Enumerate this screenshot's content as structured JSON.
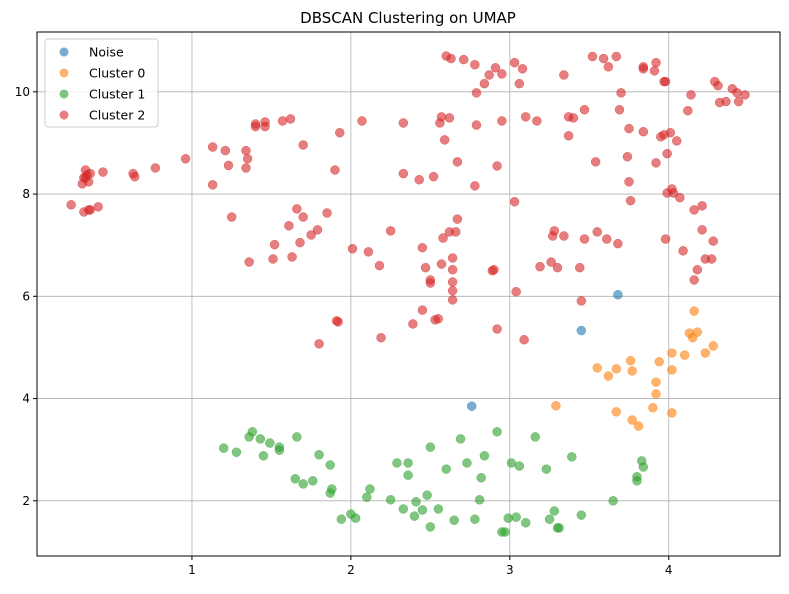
{
  "chart_data": {
    "type": "scatter",
    "title": "DBSCAN Clustering on UMAP",
    "xlabel": "",
    "ylabel": "",
    "xlim": [
      0.025,
      4.7
    ],
    "ylim": [
      0.92,
      11.17
    ],
    "xticks": [
      1,
      2,
      3,
      4
    ],
    "yticks": [
      2,
      4,
      6,
      8,
      10
    ],
    "grid": true,
    "legend_position": "top-left",
    "alpha": 0.6,
    "series": [
      {
        "name": "Noise",
        "color": "#1f77b4",
        "points": [
          [
            3.68,
            6.03
          ],
          [
            3.45,
            5.33
          ],
          [
            2.76,
            3.85
          ]
        ]
      },
      {
        "name": "Cluster 0",
        "color": "#ff7f0e",
        "points": [
          [
            4.16,
            5.71
          ],
          [
            4.13,
            5.28
          ],
          [
            4.18,
            5.3
          ],
          [
            4.15,
            5.19
          ],
          [
            4.28,
            5.03
          ],
          [
            4.02,
            4.89
          ],
          [
            4.1,
            4.85
          ],
          [
            4.23,
            4.89
          ],
          [
            3.76,
            4.74
          ],
          [
            3.94,
            4.72
          ],
          [
            3.55,
            4.6
          ],
          [
            3.67,
            4.58
          ],
          [
            3.77,
            4.54
          ],
          [
            4.02,
            4.56
          ],
          [
            3.62,
            4.44
          ],
          [
            3.92,
            4.32
          ],
          [
            3.92,
            4.09
          ],
          [
            3.29,
            3.86
          ],
          [
            3.9,
            3.82
          ],
          [
            3.67,
            3.74
          ],
          [
            4.02,
            3.72
          ],
          [
            3.77,
            3.58
          ],
          [
            3.81,
            3.46
          ]
        ]
      },
      {
        "name": "Cluster 1",
        "color": "#2ca02c",
        "points": [
          [
            1.2,
            3.03
          ],
          [
            1.28,
            2.95
          ],
          [
            1.38,
            3.35
          ],
          [
            1.36,
            3.25
          ],
          [
            1.43,
            3.21
          ],
          [
            1.49,
            3.13
          ],
          [
            1.55,
            3.05
          ],
          [
            1.55,
            2.99
          ],
          [
            1.45,
            2.88
          ],
          [
            1.66,
            3.25
          ],
          [
            1.65,
            2.43
          ],
          [
            1.7,
            2.33
          ],
          [
            1.76,
            2.39
          ],
          [
            1.8,
            2.9
          ],
          [
            1.87,
            2.7
          ],
          [
            1.88,
            2.23
          ],
          [
            1.87,
            2.15
          ],
          [
            1.94,
            1.64
          ],
          [
            2.0,
            1.74
          ],
          [
            2.03,
            1.66
          ],
          [
            2.1,
            2.07
          ],
          [
            2.12,
            2.23
          ],
          [
            2.25,
            2.02
          ],
          [
            2.29,
            2.74
          ],
          [
            2.36,
            2.74
          ],
          [
            2.36,
            2.5
          ],
          [
            2.33,
            1.84
          ],
          [
            2.4,
            1.7
          ],
          [
            2.41,
            1.98
          ],
          [
            2.45,
            1.82
          ],
          [
            2.48,
            2.11
          ],
          [
            2.5,
            1.49
          ],
          [
            2.5,
            3.05
          ],
          [
            2.55,
            1.84
          ],
          [
            2.6,
            2.62
          ],
          [
            2.65,
            1.62
          ],
          [
            2.69,
            3.21
          ],
          [
            2.73,
            2.74
          ],
          [
            2.78,
            1.64
          ],
          [
            2.81,
            2.02
          ],
          [
            2.82,
            2.45
          ],
          [
            2.84,
            2.88
          ],
          [
            2.92,
            3.35
          ],
          [
            2.95,
            1.39
          ],
          [
            2.97,
            1.39
          ],
          [
            2.99,
            1.66
          ],
          [
            3.01,
            2.74
          ],
          [
            3.04,
            1.68
          ],
          [
            3.06,
            2.68
          ],
          [
            3.1,
            1.57
          ],
          [
            3.16,
            3.25
          ],
          [
            3.23,
            2.62
          ],
          [
            3.25,
            1.64
          ],
          [
            3.28,
            1.8
          ],
          [
            3.3,
            1.47
          ],
          [
            3.31,
            1.47
          ],
          [
            3.39,
            2.86
          ],
          [
            3.45,
            1.72
          ],
          [
            3.65,
            2.0
          ],
          [
            3.8,
            2.47
          ],
          [
            3.8,
            2.39
          ],
          [
            3.83,
            2.78
          ],
          [
            3.84,
            2.66
          ]
        ]
      },
      {
        "name": "Cluster 2",
        "color": "#d62728",
        "points": [
          [
            0.24,
            7.79
          ],
          [
            0.31,
            8.2
          ],
          [
            0.33,
            8.47
          ],
          [
            0.32,
            8.32
          ],
          [
            0.34,
            8.38
          ],
          [
            0.35,
            8.24
          ],
          [
            0.36,
            8.4
          ],
          [
            0.33,
            8.32
          ],
          [
            0.32,
            7.65
          ],
          [
            0.35,
            7.69
          ],
          [
            0.36,
            7.69
          ],
          [
            0.41,
            7.75
          ],
          [
            0.44,
            8.43
          ],
          [
            0.63,
            8.4
          ],
          [
            0.64,
            8.34
          ],
          [
            0.77,
            8.51
          ],
          [
            0.96,
            8.69
          ],
          [
            1.13,
            8.92
          ],
          [
            1.13,
            8.18
          ],
          [
            1.21,
            8.85
          ],
          [
            1.23,
            8.56
          ],
          [
            1.25,
            7.55
          ],
          [
            1.34,
            8.85
          ],
          [
            1.35,
            8.69
          ],
          [
            1.34,
            8.51
          ],
          [
            1.36,
            6.67
          ],
          [
            1.4,
            9.32
          ],
          [
            1.4,
            9.37
          ],
          [
            1.46,
            9.32
          ],
          [
            1.46,
            9.41
          ],
          [
            1.52,
            7.01
          ],
          [
            1.51,
            6.73
          ],
          [
            1.57,
            9.43
          ],
          [
            1.62,
            9.47
          ],
          [
            1.61,
            7.38
          ],
          [
            1.63,
            6.77
          ],
          [
            1.66,
            7.71
          ],
          [
            1.7,
            8.96
          ],
          [
            1.7,
            7.55
          ],
          [
            1.68,
            7.05
          ],
          [
            1.75,
            7.2
          ],
          [
            1.79,
            7.3
          ],
          [
            1.8,
            5.07
          ],
          [
            1.85,
            7.63
          ],
          [
            1.9,
            8.47
          ],
          [
            1.91,
            5.52
          ],
          [
            1.92,
            5.5
          ],
          [
            1.93,
            9.2
          ],
          [
            2.01,
            6.93
          ],
          [
            2.07,
            9.43
          ],
          [
            2.11,
            6.87
          ],
          [
            2.18,
            6.6
          ],
          [
            2.19,
            5.19
          ],
          [
            2.25,
            7.28
          ],
          [
            2.33,
            9.39
          ],
          [
            2.33,
            8.4
          ],
          [
            2.39,
            5.46
          ],
          [
            2.43,
            8.28
          ],
          [
            2.45,
            6.95
          ],
          [
            2.45,
            5.73
          ],
          [
            2.47,
            6.56
          ],
          [
            2.5,
            6.26
          ],
          [
            2.5,
            6.32
          ],
          [
            2.52,
            8.34
          ],
          [
            2.53,
            5.54
          ],
          [
            2.55,
            5.56
          ],
          [
            2.56,
            9.39
          ],
          [
            2.57,
            9.51
          ],
          [
            2.57,
            6.63
          ],
          [
            2.58,
            7.14
          ],
          [
            2.59,
            9.06
          ],
          [
            2.6,
            10.7
          ],
          [
            2.62,
            9.49
          ],
          [
            2.62,
            7.26
          ],
          [
            2.63,
            10.65
          ],
          [
            2.64,
            6.75
          ],
          [
            2.64,
            6.52
          ],
          [
            2.64,
            6.28
          ],
          [
            2.64,
            6.11
          ],
          [
            2.64,
            5.93
          ],
          [
            2.67,
            8.63
          ],
          [
            2.67,
            7.51
          ],
          [
            2.66,
            7.26
          ],
          [
            2.71,
            10.63
          ],
          [
            2.78,
            10.53
          ],
          [
            2.79,
            9.98
          ],
          [
            2.79,
            9.35
          ],
          [
            2.78,
            8.16
          ],
          [
            2.84,
            10.16
          ],
          [
            2.87,
            10.33
          ],
          [
            2.89,
            6.5
          ],
          [
            2.9,
            6.52
          ],
          [
            2.91,
            10.47
          ],
          [
            2.92,
            8.55
          ],
          [
            2.92,
            5.36
          ],
          [
            2.95,
            10.35
          ],
          [
            2.95,
            9.43
          ],
          [
            3.03,
            10.57
          ],
          [
            3.03,
            7.85
          ],
          [
            3.04,
            6.09
          ],
          [
            3.06,
            10.16
          ],
          [
            3.08,
            10.45
          ],
          [
            3.09,
            5.15
          ],
          [
            3.1,
            9.51
          ],
          [
            3.17,
            9.43
          ],
          [
            3.19,
            6.58
          ],
          [
            3.26,
            6.67
          ],
          [
            3.28,
            7.28
          ],
          [
            3.27,
            7.18
          ],
          [
            3.3,
            6.56
          ],
          [
            3.34,
            7.18
          ],
          [
            3.34,
            10.33
          ],
          [
            3.37,
            9.14
          ],
          [
            3.37,
            9.51
          ],
          [
            3.4,
            9.49
          ],
          [
            3.44,
            6.56
          ],
          [
            3.45,
            5.91
          ],
          [
            3.47,
            7.12
          ],
          [
            3.47,
            9.65
          ],
          [
            3.52,
            10.69
          ],
          [
            3.54,
            8.63
          ],
          [
            3.55,
            7.26
          ],
          [
            3.59,
            10.65
          ],
          [
            3.62,
            10.49
          ],
          [
            3.61,
            7.12
          ],
          [
            3.67,
            10.69
          ],
          [
            3.68,
            7.03
          ],
          [
            3.69,
            9.65
          ],
          [
            3.7,
            9.98
          ],
          [
            3.74,
            8.73
          ],
          [
            3.75,
            8.24
          ],
          [
            3.76,
            7.87
          ],
          [
            3.75,
            9.28
          ],
          [
            3.84,
            10.49
          ],
          [
            3.84,
            10.45
          ],
          [
            3.84,
            9.22
          ],
          [
            3.91,
            10.41
          ],
          [
            3.92,
            10.57
          ],
          [
            3.92,
            8.61
          ],
          [
            3.95,
            9.12
          ],
          [
            3.97,
            9.16
          ],
          [
            3.97,
            10.2
          ],
          [
            3.98,
            10.2
          ],
          [
            3.98,
            7.12
          ],
          [
            3.99,
            8.79
          ],
          [
            3.99,
            8.02
          ],
          [
            4.01,
            9.2
          ],
          [
            4.02,
            8.1
          ],
          [
            4.03,
            8.02
          ],
          [
            4.05,
            9.04
          ],
          [
            4.07,
            7.93
          ],
          [
            4.09,
            6.89
          ],
          [
            4.12,
            9.63
          ],
          [
            4.14,
            9.94
          ],
          [
            4.16,
            7.69
          ],
          [
            4.16,
            6.32
          ],
          [
            4.18,
            6.52
          ],
          [
            4.21,
            7.77
          ],
          [
            4.21,
            7.3
          ],
          [
            4.23,
            6.73
          ],
          [
            4.27,
            6.73
          ],
          [
            4.28,
            7.08
          ],
          [
            4.29,
            10.2
          ],
          [
            4.31,
            10.12
          ],
          [
            4.32,
            9.79
          ],
          [
            4.36,
            9.81
          ],
          [
            4.4,
            10.06
          ],
          [
            4.43,
            9.98
          ],
          [
            4.44,
            9.81
          ],
          [
            4.48,
            9.94
          ]
        ]
      }
    ]
  }
}
